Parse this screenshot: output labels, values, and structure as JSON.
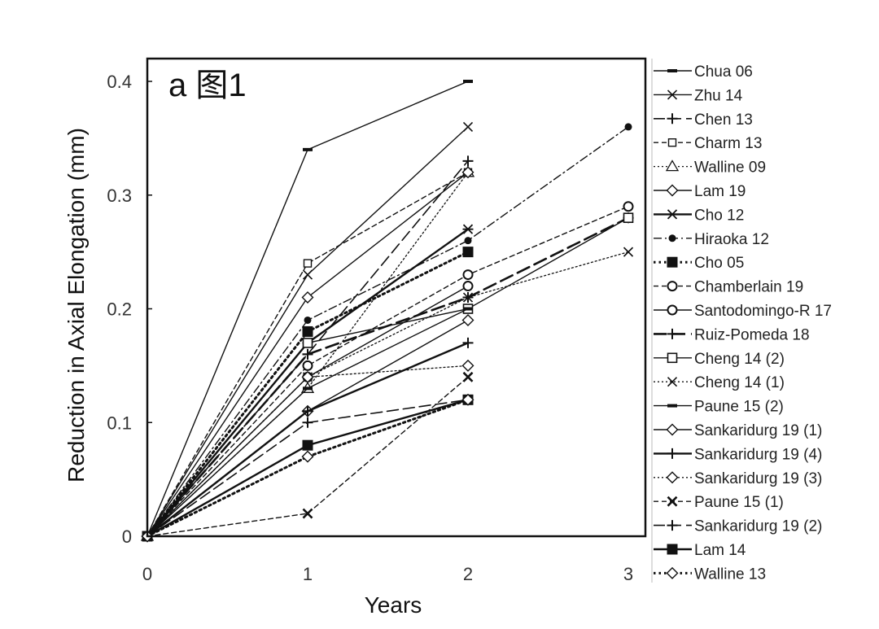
{
  "chart_data": {
    "type": "line",
    "panel_label": "a 图1",
    "xlabel": "Years",
    "ylabel": "Reduction in Axial Elongation (mm)",
    "x_ticks": [
      "0",
      "1",
      "2",
      "3"
    ],
    "y_ticks": [
      "0",
      "0.1",
      "0.2",
      "0.3",
      "0.4"
    ],
    "xlim": [
      0,
      3
    ],
    "ylim": [
      0,
      0.4
    ],
    "grid": false,
    "legend_position": "right",
    "series": [
      {
        "name": "Chua 06",
        "dash": "solid",
        "marker": "dash",
        "x": [
          0,
          1,
          2
        ],
        "y": [
          0,
          0.34,
          0.4
        ]
      },
      {
        "name": "Zhu 14",
        "dash": "solid",
        "marker": "x",
        "x": [
          0,
          1,
          2
        ],
        "y": [
          0,
          0.23,
          0.36
        ]
      },
      {
        "name": "Chen 13",
        "dash": "longdash",
        "marker": "plus",
        "x": [
          0,
          1,
          2
        ],
        "y": [
          0,
          0.16,
          0.33
        ]
      },
      {
        "name": "Charm 13",
        "dash": "dash",
        "marker": "square-open-small",
        "x": [
          0,
          1,
          2
        ],
        "y": [
          0,
          0.24,
          0.32
        ]
      },
      {
        "name": "Walline 09",
        "dash": "dot",
        "marker": "triangle-open",
        "x": [
          0,
          1,
          2
        ],
        "y": [
          0,
          0.13,
          0.32
        ]
      },
      {
        "name": "Lam 19",
        "dash": "solid",
        "marker": "diamond-open",
        "x": [
          0,
          1,
          2
        ],
        "y": [
          0,
          0.21,
          0.32
        ]
      },
      {
        "name": "Cho 12",
        "dash": "solid-bold",
        "marker": "star",
        "x": [
          0,
          1,
          2
        ],
        "y": [
          0,
          0.17,
          0.27
        ]
      },
      {
        "name": "Hiraoka 12",
        "dash": "dashdot",
        "marker": "circle-filled",
        "x": [
          0,
          1,
          2,
          3
        ],
        "y": [
          0,
          0.19,
          0.26,
          0.36
        ]
      },
      {
        "name": "Cho 05",
        "dash": "dot-bold",
        "marker": "square-filled",
        "x": [
          0,
          1,
          2
        ],
        "y": [
          0,
          0.18,
          0.25
        ]
      },
      {
        "name": "Chamberlain 19",
        "dash": "dash",
        "marker": "circle-open",
        "x": [
          0,
          1,
          2,
          3
        ],
        "y": [
          0,
          0.15,
          0.23,
          0.29
        ]
      },
      {
        "name": "Santodomingo-R 17",
        "dash": "solid",
        "marker": "circle-open",
        "x": [
          0,
          1,
          2
        ],
        "y": [
          0,
          0.14,
          0.22
        ]
      },
      {
        "name": "Ruiz-Pomeda 18",
        "dash": "longdash-bold",
        "marker": "plus",
        "x": [
          0,
          1,
          2,
          3
        ],
        "y": [
          0,
          0.16,
          0.21,
          0.28
        ]
      },
      {
        "name": "Cheng 14 (2)",
        "dash": "solid",
        "marker": "square-open",
        "x": [
          0,
          1,
          2,
          3
        ],
        "y": [
          0,
          0.17,
          0.2,
          0.28
        ]
      },
      {
        "name": "Cheng 14 (1)",
        "dash": "dot",
        "marker": "x",
        "x": [
          0,
          1,
          2,
          3
        ],
        "y": [
          0,
          0.14,
          0.21,
          0.25
        ]
      },
      {
        "name": "Paune 15 (2)",
        "dash": "solid",
        "marker": "dash",
        "x": [
          0,
          1,
          2
        ],
        "y": [
          0,
          0.13,
          0.2
        ]
      },
      {
        "name": "Sankaridurg 19 (1)",
        "dash": "solid",
        "marker": "diamond-open",
        "x": [
          0,
          1,
          2
        ],
        "y": [
          0,
          0.11,
          0.19
        ]
      },
      {
        "name": "Sankaridurg 19 (4)",
        "dash": "solid-bold",
        "marker": "plus",
        "x": [
          0,
          1,
          2
        ],
        "y": [
          0,
          0.11,
          0.17
        ]
      },
      {
        "name": "Sankaridurg 19 (3)",
        "dash": "dot",
        "marker": "diamond-open",
        "x": [
          0,
          1,
          2
        ],
        "y": [
          0,
          0.14,
          0.15
        ]
      },
      {
        "name": "Paune 15 (1)",
        "dash": "dash",
        "marker": "x-bold",
        "x": [
          0,
          1,
          2
        ],
        "y": [
          0,
          0.02,
          0.14
        ]
      },
      {
        "name": "Sankaridurg 19 (2)",
        "dash": "longdash",
        "marker": "plus",
        "x": [
          0,
          1,
          2
        ],
        "y": [
          0,
          0.1,
          0.12
        ]
      },
      {
        "name": "Lam 14",
        "dash": "solid-bold",
        "marker": "square-filled",
        "x": [
          0,
          1,
          2
        ],
        "y": [
          0,
          0.08,
          0.12
        ]
      },
      {
        "name": "Walline 13",
        "dash": "dot-bold",
        "marker": "diamond-open",
        "x": [
          0,
          1,
          2
        ],
        "y": [
          0,
          0.07,
          0.12
        ]
      }
    ]
  }
}
